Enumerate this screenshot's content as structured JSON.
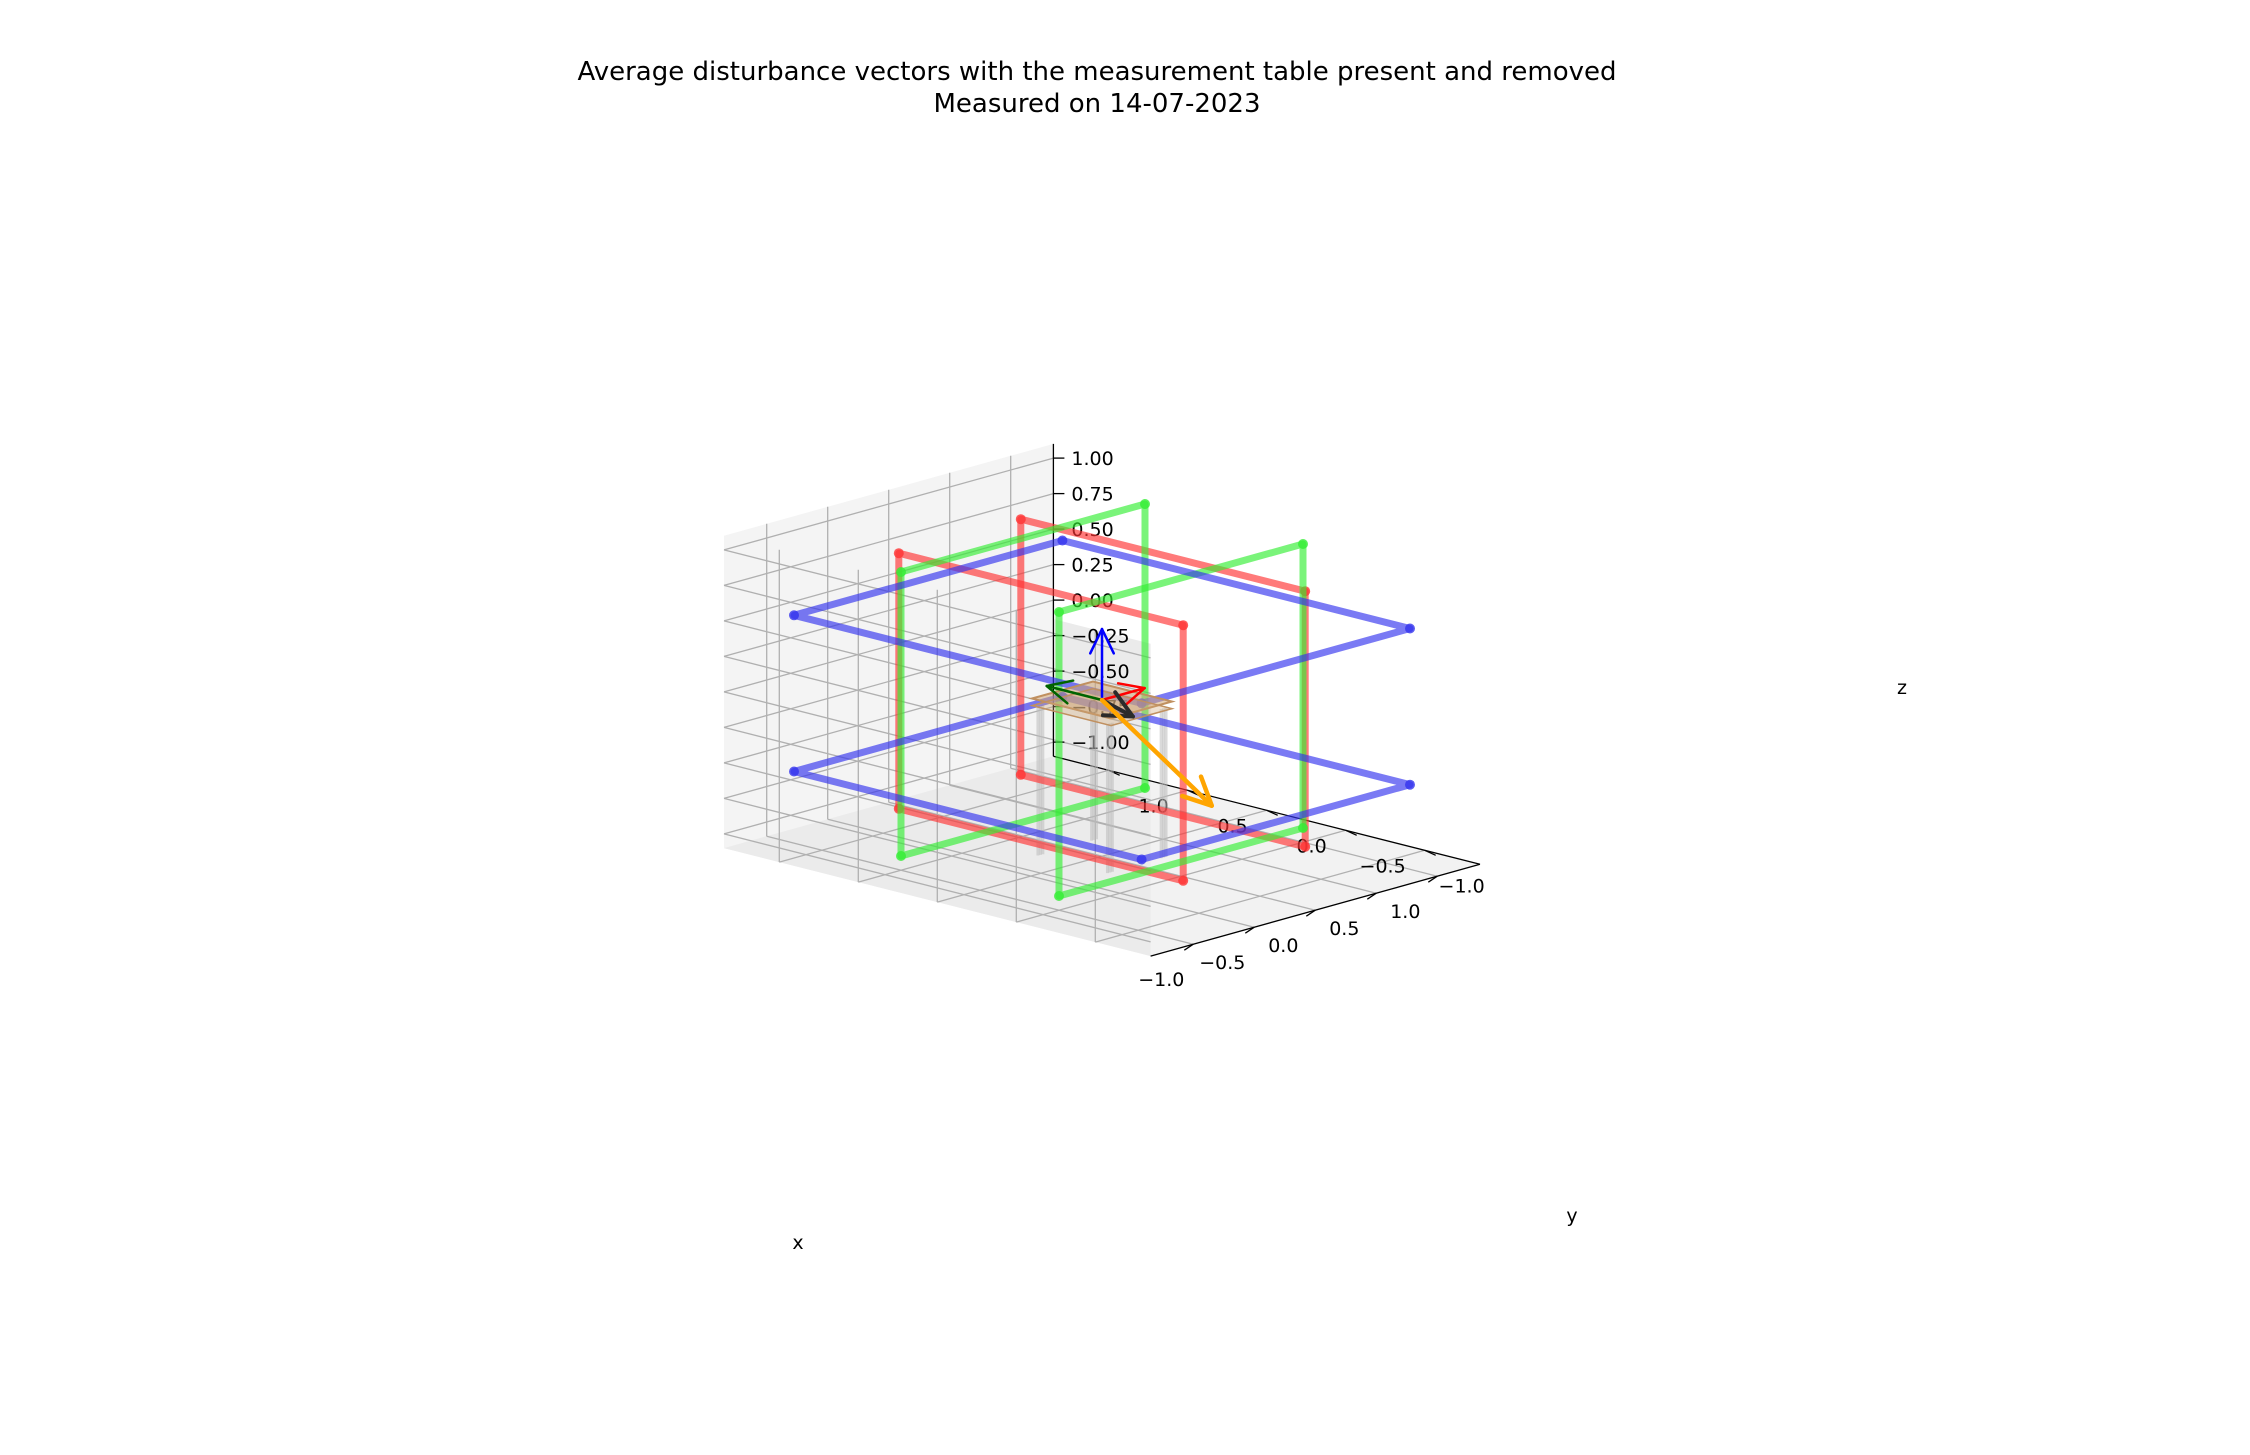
{
  "chart_data": {
    "type": "3d-line",
    "title": "Average disturbance vectors with the measurement table present and removed",
    "subtitle": "Measured on 14-07-2023",
    "xlabel": "x",
    "ylabel": "y",
    "zlabel": "z",
    "xlim": [
      -1.35,
      1.35
    ],
    "ylim": [
      -1.35,
      1.35
    ],
    "zlim": [
      -1.1,
      1.1
    ],
    "x_ticks": [
      "−1.0",
      "−0.5",
      "0.0",
      "0.5",
      "1.0"
    ],
    "y_ticks": [
      "−1.0",
      "−0.5",
      "0.0",
      "0.5",
      "1.0"
    ],
    "z_ticks": [
      "−1.00",
      "−0.75",
      "−0.50",
      "−0.25",
      "0.00",
      "0.25",
      "0.50",
      "0.75",
      "1.00"
    ],
    "grid": true,
    "colors": {
      "coil_x": "#ff3333",
      "coil_y": "#33ee33",
      "coil_z": "#3333ee",
      "axis_x": "#ff0000",
      "axis_y": "#006400",
      "axis_z": "#0000ff",
      "vector_table_present": "#2b2b2b",
      "vector_table_removed": "#ffa500",
      "table": "#d2a878",
      "table_legs": "#bbbbbb"
    },
    "coils": [
      {
        "axis": "x",
        "color": "#ff3333",
        "frames": [
          [
            [
              -0.5,
              -0.9,
              -0.9
            ],
            [
              -0.5,
              0.9,
              -0.9
            ],
            [
              -0.5,
              0.9,
              0.9
            ],
            [
              -0.5,
              -0.9,
              0.9
            ]
          ],
          [
            [
              0.5,
              -0.9,
              -0.9
            ],
            [
              0.5,
              0.9,
              -0.9
            ],
            [
              0.5,
              0.9,
              0.9
            ],
            [
              0.5,
              -0.9,
              0.9
            ]
          ]
        ]
      },
      {
        "axis": "y",
        "color": "#33ee33",
        "frames": [
          [
            [
              -1.0,
              -0.5,
              -1.0
            ],
            [
              1.0,
              -0.5,
              -1.0
            ],
            [
              1.0,
              -0.5,
              1.0
            ],
            [
              -1.0,
              -0.5,
              1.0
            ]
          ],
          [
            [
              -1.0,
              0.5,
              -1.0
            ],
            [
              1.0,
              0.5,
              -1.0
            ],
            [
              1.0,
              0.5,
              1.0
            ],
            [
              -1.0,
              0.5,
              1.0
            ]
          ]
        ]
      },
      {
        "axis": "z",
        "color": "#3333ee",
        "frames": [
          [
            [
              -1.1,
              -1.1,
              -0.55
            ],
            [
              1.1,
              -1.1,
              -0.55
            ],
            [
              1.1,
              1.1,
              -0.55
            ],
            [
              -1.1,
              1.1,
              -0.55
            ]
          ],
          [
            [
              -1.1,
              -1.1,
              0.55
            ],
            [
              1.1,
              -1.1,
              0.55
            ],
            [
              1.1,
              1.1,
              0.55
            ],
            [
              -1.1,
              1.1,
              0.55
            ]
          ]
        ]
      }
    ],
    "unit_axes": [
      {
        "name": "x",
        "from": [
          0,
          0,
          0
        ],
        "to": [
          0.35,
          0,
          0
        ],
        "color": "#ff0000"
      },
      {
        "name": "y",
        "from": [
          0,
          0,
          0
        ],
        "to": [
          0,
          0.35,
          0
        ],
        "color": "#006400"
      },
      {
        "name": "z",
        "from": [
          0,
          0,
          0
        ],
        "to": [
          0,
          0,
          0.5
        ],
        "color": "#0000ff"
      }
    ],
    "series": [
      {
        "from": [
          0,
          0,
          0
        ],
        "to": [
          -0.2,
          -0.35,
          0.03
        ],
        "color": "#2b2b2b"
      },
      {
        "from": [
          0,
          0,
          0
        ],
        "to": [
          0.55,
          -0.27,
          -0.8
        ],
        "color": "#ffa500"
      }
    ],
    "table": {
      "top": [
        [
          -0.25,
          -0.25,
          -0.05
        ],
        [
          0.25,
          -0.25,
          -0.05
        ],
        [
          0.25,
          0.25,
          -0.05
        ],
        [
          -0.25,
          0.25,
          -0.05
        ]
      ],
      "top_z": [
        -0.05,
        0.0
      ],
      "legs": [
        [
          -0.22,
          -0.22
        ],
        [
          0.22,
          -0.22
        ],
        [
          0.22,
          0.22
        ],
        [
          -0.22,
          0.22
        ]
      ],
      "leg_bottom_z": -1.1
    }
  }
}
